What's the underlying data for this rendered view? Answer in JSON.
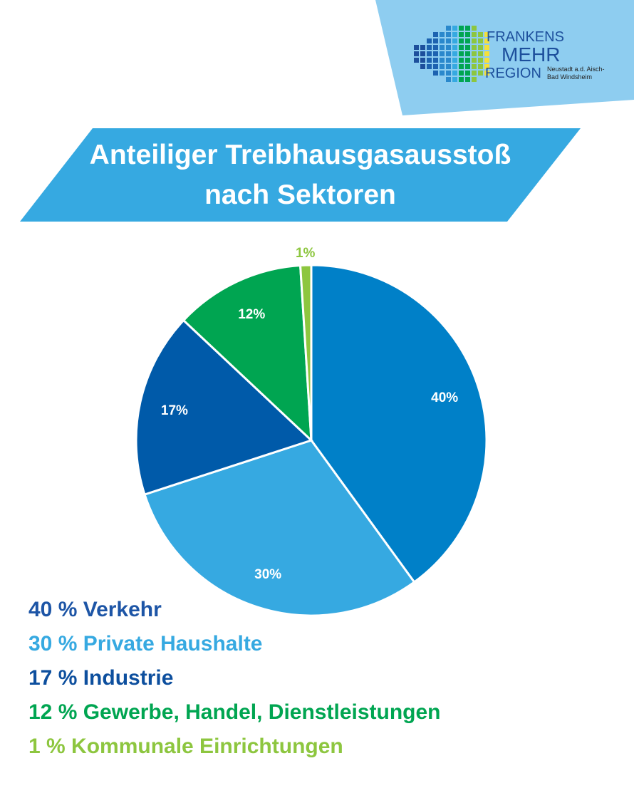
{
  "logo": {
    "line1": "FRANKENS",
    "line2": "MEHR",
    "line3": "REGION",
    "sub1": "Neustadt a.d. Aisch-",
    "sub2": "Bad Windsheim"
  },
  "title": {
    "line1": "Anteiliger Treibhausgasausstoß",
    "line2": "nach Sektoren"
  },
  "colors": {
    "banner": "#36a9e1",
    "logo_panel": "#8ecdf0"
  },
  "chart_data": {
    "type": "pie",
    "title": "Anteiliger Treibhausgasausstoß nach Sektoren",
    "start": "top",
    "direction": "clockwise",
    "slices": [
      {
        "name": "Verkehr",
        "value": 40,
        "label": "40%",
        "legend": "40 % Verkehr",
        "color": "#0080c8",
        "legend_color": "#1d55a6",
        "label_color": "#ffffff"
      },
      {
        "name": "Private Haushalte",
        "value": 30,
        "label": "30%",
        "legend": "30 % Private Haushalte",
        "color": "#36a9e1",
        "legend_color": "#36a9e1",
        "label_color": "#ffffff"
      },
      {
        "name": "Industrie",
        "value": 17,
        "label": "17%",
        "legend": "17 % Industrie",
        "color": "#005aa9",
        "legend_color": "#0d4f9e",
        "label_color": "#ffffff"
      },
      {
        "name": "Gewerbe, Handel, Dienstleistungen",
        "value": 12,
        "label": "12%",
        "legend": "12 % Gewerbe, Handel, Dienstleistungen",
        "color": "#00a551",
        "legend_color": "#00a551",
        "label_color": "#ffffff"
      },
      {
        "name": "Kommunale Einrichtungen",
        "value": 1,
        "label": "1%",
        "legend": "1 % Kommunale Einrichtungen",
        "color": "#8dc63f",
        "legend_color": "#8dc63f",
        "label_color": "#8dc63f"
      }
    ]
  }
}
